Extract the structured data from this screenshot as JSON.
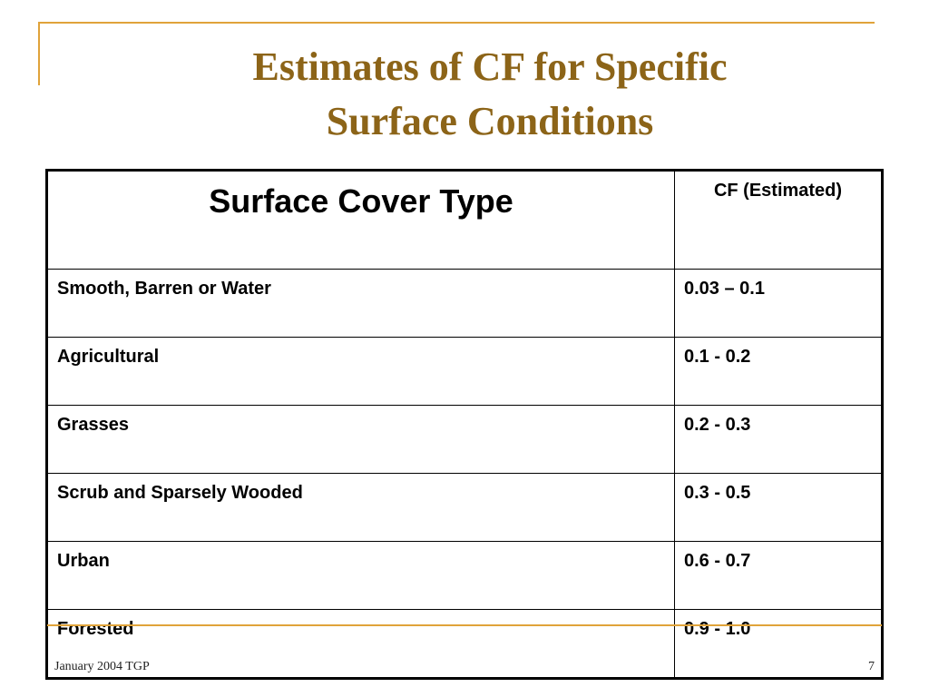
{
  "slide": {
    "title": "Estimates of  CF for Specific Surface Conditions",
    "title_line1": "Estimates of  CF for Specific",
    "title_line2": "Surface Conditions",
    "accent_color": "#e0a33a",
    "title_color": "#8c6418"
  },
  "table": {
    "headers": [
      "Surface Cover Type",
      "CF (Estimated)"
    ],
    "rows": [
      [
        "Smooth, Barren or Water",
        "0.03 – 0.1"
      ],
      [
        "Agricultural",
        "0.1 - 0.2"
      ],
      [
        "Grasses",
        "0.2 - 0.3"
      ],
      [
        "Scrub and Sparsely Wooded",
        "0.3 - 0.5"
      ],
      [
        "Urban",
        "0.6 - 0.7"
      ],
      [
        "Forested",
        "0.9 - 1.0"
      ]
    ]
  },
  "footer": {
    "left": "January 2004   TGP",
    "page_number": "7"
  }
}
